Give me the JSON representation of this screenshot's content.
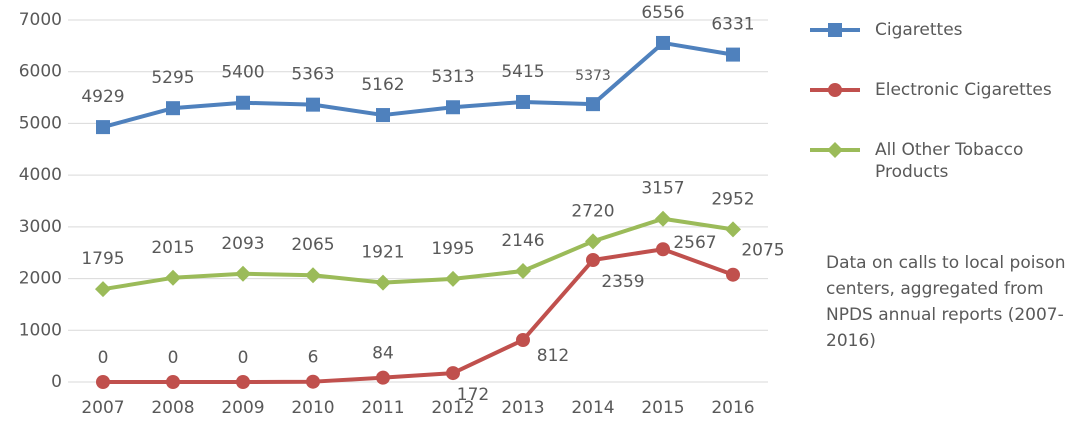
{
  "chart_data": {
    "type": "line",
    "categories": [
      "2007",
      "2008",
      "2009",
      "2010",
      "2011",
      "2012",
      "2013",
      "2014",
      "2015",
      "2016"
    ],
    "series": [
      {
        "name": "Cigarettes",
        "color": "#4f81bd",
        "marker": "square",
        "values": [
          4929,
          5295,
          5400,
          5363,
          5162,
          5313,
          5415,
          5373,
          6556,
          6331
        ]
      },
      {
        "name": "Electronic Cigarettes",
        "color": "#c0504d",
        "marker": "circle",
        "values": [
          0,
          0,
          0,
          6,
          84,
          172,
          812,
          2359,
          2567,
          2075
        ]
      },
      {
        "name": "All Other Tobacco Products",
        "color": "#9bbb59",
        "marker": "diamond",
        "values": [
          1795,
          2015,
          2093,
          2065,
          1921,
          1995,
          2146,
          2720,
          3157,
          2952
        ]
      }
    ],
    "ylim": [
      0,
      7000
    ],
    "yticks": [
      0,
      1000,
      2000,
      3000,
      4000,
      5000,
      6000,
      7000
    ],
    "grid": true,
    "legend": "right",
    "annotation": "Data on calls to local poison centers, aggregated from NPDS annual reports (2007-2016)"
  }
}
